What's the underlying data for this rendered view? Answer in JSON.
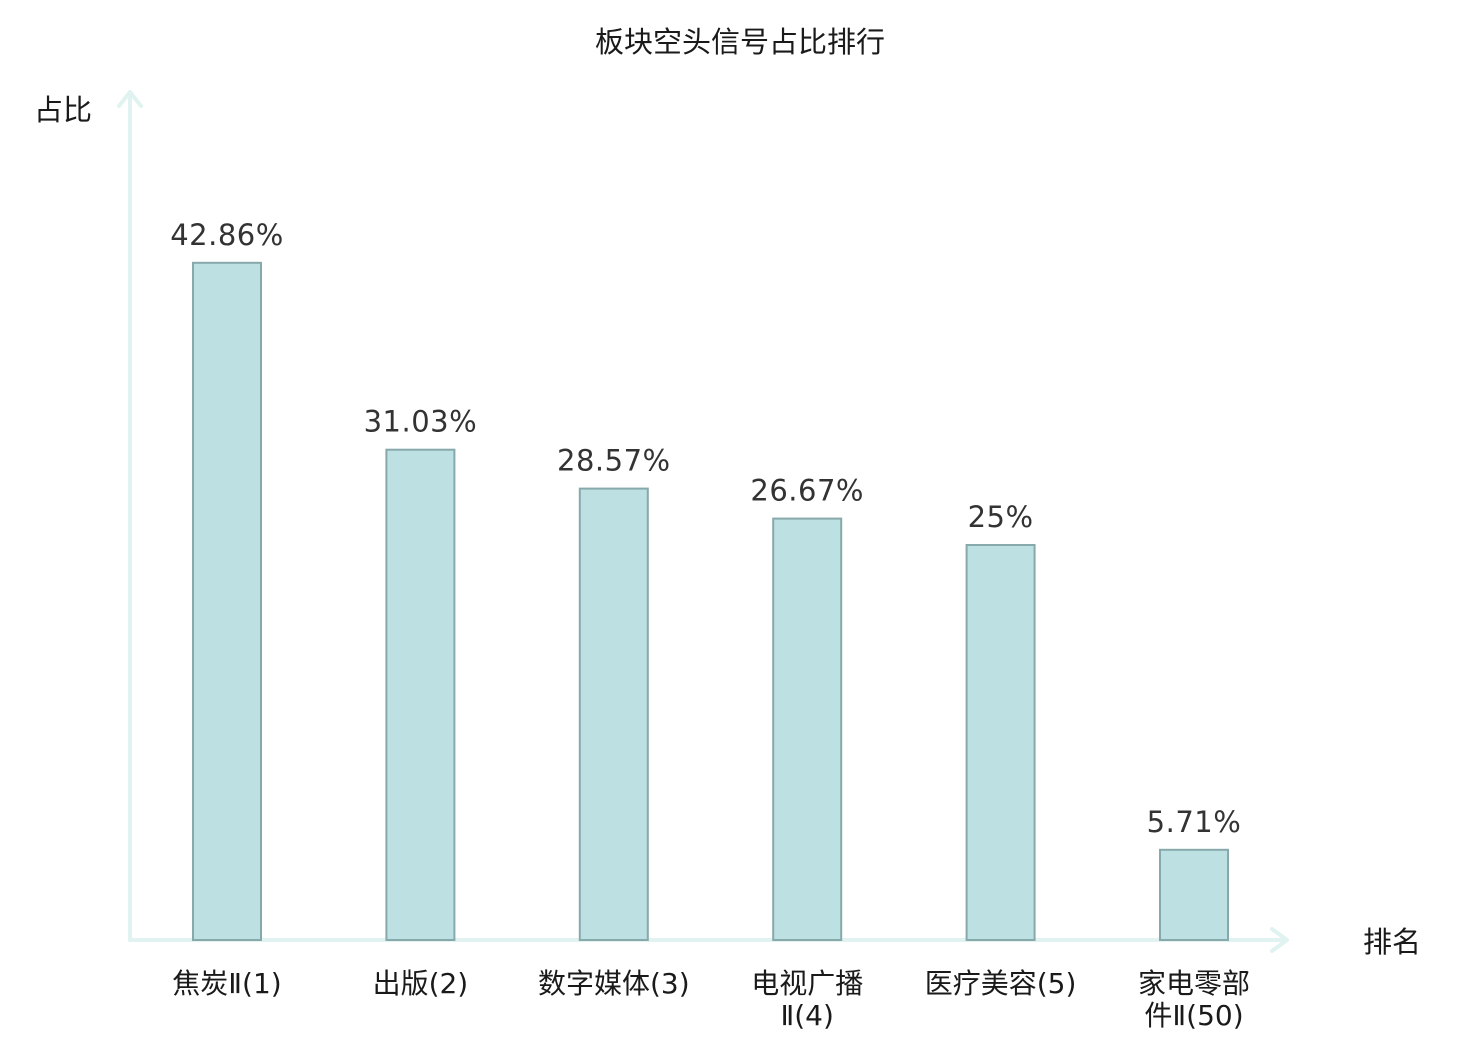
{
  "chart_data": {
    "type": "bar",
    "title": "板块空头信号占比排行",
    "xlabel": "排名",
    "ylabel": "占比",
    "categories": [
      {
        "lines": [
          "焦炭Ⅱ(1)"
        ],
        "highlight": false
      },
      {
        "lines": [
          "出版(2)"
        ],
        "highlight": false
      },
      {
        "lines": [
          "数字媒体(3)"
        ],
        "highlight": false
      },
      {
        "lines": [
          "电视广播",
          "Ⅱ(4)"
        ],
        "highlight": false
      },
      {
        "lines": [
          "医疗美容(5)"
        ],
        "highlight": false
      },
      {
        "lines": [
          "家电零部",
          "件Ⅱ(50)"
        ],
        "highlight": true
      }
    ],
    "values": [
      42.86,
      31.03,
      28.57,
      26.67,
      25,
      5.71
    ],
    "value_labels": [
      "42.86%",
      "31.03%",
      "28.57%",
      "26.67%",
      "25%",
      "5.71%"
    ],
    "ylim": [
      0,
      50
    ],
    "grid": false,
    "colors": {
      "bar_fill": "#bde0e2",
      "bar_stroke": "#88a9ab",
      "axis": "#e0f3f1",
      "highlight_label": "#e0211c",
      "label": "#1a1a1a",
      "value_label": "#333333"
    }
  }
}
